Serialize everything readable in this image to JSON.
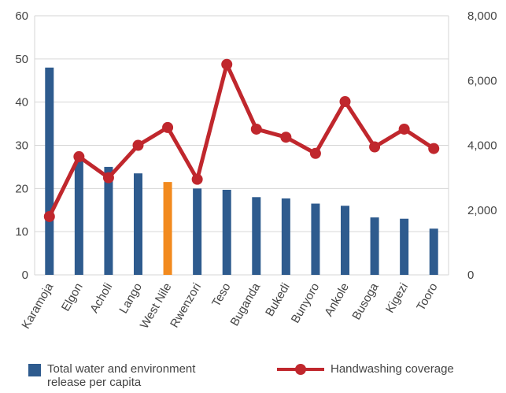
{
  "chart_data": {
    "type": "bar+line",
    "categories": [
      "Karamoja",
      "Elgon",
      "Acholi",
      "Lango",
      "West Nile",
      "Rwenzori",
      "Teso",
      "Buganda",
      "Bukedi",
      "Bunyoro",
      "Ankole",
      "Busoga",
      "Kigezi",
      "Tooro"
    ],
    "series": [
      {
        "name": "Total water and environment release per capita",
        "type": "bar",
        "axis": "left",
        "values": [
          48,
          28,
          25,
          23.5,
          21.5,
          20,
          19.7,
          18,
          17.7,
          16.5,
          16,
          13.3,
          13,
          10.7
        ],
        "color": "#2e5b8e",
        "highlight_index": 4,
        "highlight_color": "#f28a1e"
      },
      {
        "name": "Handwashing coverage",
        "type": "line",
        "axis": "right",
        "values": [
          1800,
          3650,
          3000,
          4000,
          4550,
          2950,
          6500,
          4500,
          4250,
          3750,
          5350,
          3950,
          4500,
          3900
        ],
        "color": "#c0272d"
      }
    ],
    "y_left": {
      "ylim": [
        0,
        60
      ],
      "ticks": [
        "0",
        "10",
        "20",
        "30",
        "40",
        "50",
        "60"
      ]
    },
    "y_right": {
      "ylim": [
        0,
        8000
      ],
      "ticks": [
        "0",
        "2,000",
        "4,000",
        "6,000",
        "8,000"
      ]
    },
    "grid": "horizontal",
    "legend_position": "bottom",
    "legend": {
      "bar_label_line1": "Total water and environment",
      "bar_label_line2": "release per capita",
      "line_label": "Handwashing coverage"
    }
  }
}
